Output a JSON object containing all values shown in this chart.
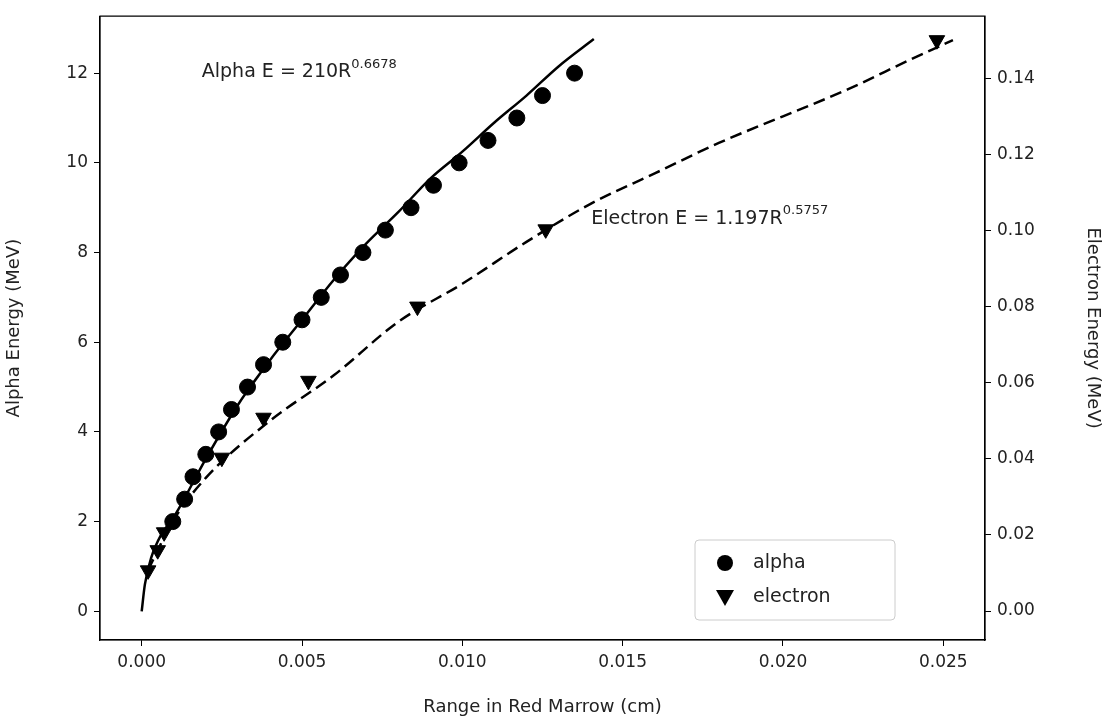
{
  "chart_data": {
    "type": "scatter",
    "xlabel": "Range in Red Marrow (cm)",
    "ylabel": "Alpha Energy (MeV)",
    "y2label": "Electron Energy (MeV)",
    "xlim": [
      -0.0013,
      0.0263
    ],
    "xticks": [
      {
        "value": 0,
        "label": "0.000"
      },
      {
        "value": 0.005,
        "label": "0.005"
      },
      {
        "value": 0.01,
        "label": "0.010"
      },
      {
        "value": 0.015,
        "label": "0.015"
      },
      {
        "value": 0.02,
        "label": "0.020"
      },
      {
        "value": 0.025,
        "label": "0.025"
      }
    ],
    "ylim": [
      -0.64,
      13.27
    ],
    "yticks": [
      0,
      2,
      4,
      6,
      8,
      10,
      12
    ],
    "y2lim": [
      -0.0076,
      0.1563
    ],
    "y2ticks": [
      {
        "value": 0,
        "label": "0.00"
      },
      {
        "value": 0.02,
        "label": "0.02"
      },
      {
        "value": 0.04,
        "label": "0.04"
      },
      {
        "value": 0.06,
        "label": "0.06"
      },
      {
        "value": 0.08,
        "label": "0.08"
      },
      {
        "value": 0.1,
        "label": "0.10"
      },
      {
        "value": 0.12,
        "label": "0.12"
      },
      {
        "value": 0.14,
        "label": "0.14"
      }
    ],
    "grid": false,
    "legend": "bottom right",
    "series": [
      {
        "name": "alpha",
        "marker": "circle",
        "color": "#000000",
        "x": [
          0.00097,
          0.00134,
          0.0016,
          0.002,
          0.0024,
          0.0028,
          0.0033,
          0.0038,
          0.0044,
          0.005,
          0.0056,
          0.0062,
          0.0069,
          0.0076,
          0.0084,
          0.0091,
          0.0099,
          0.0108,
          0.0117,
          0.0125,
          0.0135
        ],
        "values": [
          2,
          2.5,
          3,
          3.5,
          4,
          4.5,
          5,
          5.5,
          6,
          6.5,
          7,
          7.5,
          8,
          8.5,
          9,
          9.5,
          10,
          10.5,
          11,
          11.5,
          12
        ]
      },
      {
        "name": "electron",
        "marker": "triangle",
        "axis": "y2",
        "color": "#000000",
        "x": [
          0.0002,
          0.0005,
          0.0007,
          0.0025,
          0.0038,
          0.0052,
          0.0086,
          0.0126,
          0.0248
        ],
        "values": [
          0.0107,
          0.016,
          0.0207,
          0.0403,
          0.0508,
          0.0605,
          0.08,
          0.1003,
          0.15
        ]
      },
      {
        "type": "line",
        "line_style": "solid",
        "marker": "none",
        "color": "#000000",
        "x": [
          0,
          0.0001,
          0.0003,
          0.0006,
          0.001,
          0.002,
          0.003,
          0.004,
          0.005,
          0.006,
          0.007,
          0.008,
          0.009,
          0.01,
          0.011,
          0.012,
          0.013,
          0.0141
        ],
        "values": [
          0,
          0.6,
          1.2,
          1.7,
          2.1,
          3.4,
          4.6,
          5.6,
          6.5,
          7.4,
          8.2,
          8.9,
          9.65,
          10.25,
          10.9,
          11.5,
          12.15,
          12.76
        ]
      },
      {
        "type": "line",
        "line_style": "dashed",
        "marker": "none",
        "axis": "y2",
        "color": "#000000",
        "x": [
          0.0002,
          0.0005,
          0.001,
          0.002,
          0.004,
          0.006,
          0.008,
          0.01,
          0.012,
          0.014,
          0.016,
          0.018,
          0.02,
          0.022,
          0.024,
          0.0253
        ],
        "values": [
          0.0107,
          0.016,
          0.024,
          0.035,
          0.05,
          0.062,
          0.076,
          0.086,
          0.097,
          0.107,
          0.115,
          0.123,
          0.13,
          0.137,
          0.145,
          0.15
        ]
      }
    ],
    "annotations": [
      "Alpha E = 210R$^{0.6678}$",
      "Electron E = 1.197R$^{0.5757}$"
    ]
  }
}
